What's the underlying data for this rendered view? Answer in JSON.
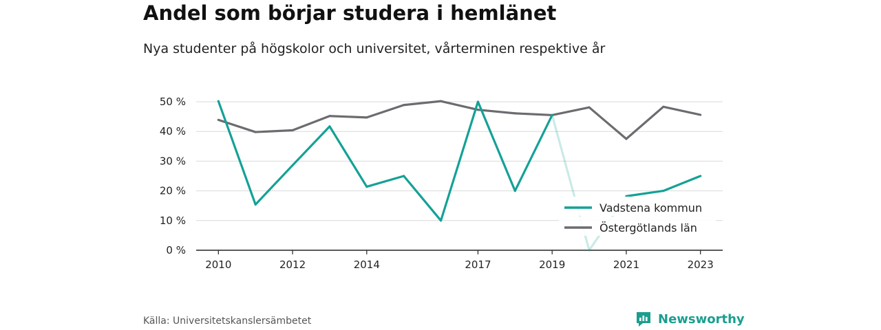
{
  "header": {
    "title": "Andel som börjar studera i hemlänet",
    "subtitle": "Nya studenter på högskolor och universitet, vårterminen respektive år"
  },
  "footer": {
    "source": "Källa: Universitetskanslersämbetet",
    "brand": "Newsworthy"
  },
  "colors": {
    "vadstena": "#14a196",
    "ostergotland": "#6b6b70",
    "grid": "#d9d9d9",
    "brand": "#1a9e8f"
  },
  "chart_data": {
    "type": "line",
    "title": "Andel som börjar studera i hemlänet",
    "subtitle": "Nya studenter på högskolor och universitet, vårterminen respektive år",
    "x": [
      2010,
      2011,
      2012,
      2013,
      2014,
      2015,
      2016,
      2017,
      2018,
      2019,
      2020,
      2021,
      2022,
      2023
    ],
    "x_tick_labels": [
      "2010",
      "2012",
      "2014",
      "2017",
      "2019",
      "2021",
      "2023"
    ],
    "x_tick_values": [
      2010,
      2012,
      2014,
      2017,
      2019,
      2021,
      2023
    ],
    "xlim": [
      2009.4,
      2023.6
    ],
    "ylim": [
      0,
      50
    ],
    "y_ticks": [
      0,
      10,
      20,
      30,
      40,
      50
    ],
    "y_tick_labels": [
      "0 %",
      "10 %",
      "20 %",
      "30 %",
      "40 %",
      "50 %"
    ],
    "grid": true,
    "legend_position": "bottom-right",
    "series": [
      {
        "name": "Vadstena kommun",
        "values": [
          50.2,
          15.4,
          28.6,
          41.7,
          21.4,
          25.0,
          10.0,
          50.0,
          20.0,
          45.5,
          0.0,
          18.2,
          20.0,
          25.0
        ],
        "faded_segments": [
          [
            9,
            10
          ],
          [
            10,
            11
          ]
        ]
      },
      {
        "name": "Östergötlands län",
        "values": [
          43.9,
          39.8,
          40.4,
          45.2,
          44.7,
          48.9,
          50.2,
          47.3,
          46.1,
          45.5,
          48.1,
          37.5,
          48.3,
          45.6
        ]
      }
    ]
  }
}
